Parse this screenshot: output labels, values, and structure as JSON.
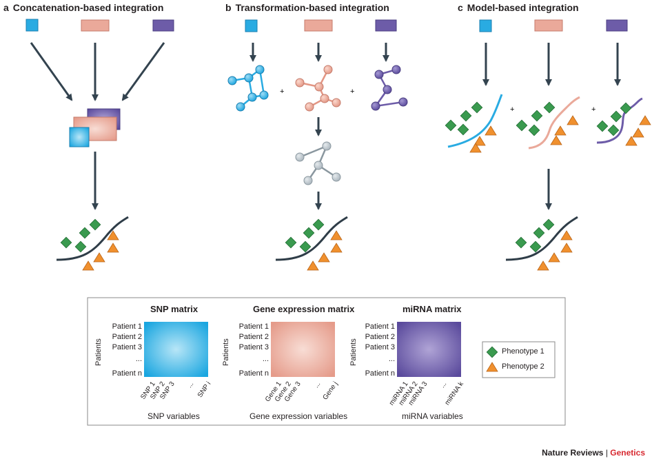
{
  "panels": [
    {
      "letter": "a",
      "title": "Concatenation-based integration"
    },
    {
      "letter": "b",
      "title": "Transformation-based integration"
    },
    {
      "letter": "c",
      "title": "Model-based integration"
    }
  ],
  "plus_sign": "+",
  "matrices": [
    {
      "title": "SNP matrix",
      "rows": [
        "Patient 1",
        "Patient 2",
        "Patient 3",
        "...",
        "Patient n"
      ],
      "cols": [
        "SNP 1",
        "SNP 2",
        "SNP 3",
        "...",
        "SNP i"
      ],
      "xlabel": "SNP variables",
      "ylabel": "Patients"
    },
    {
      "title": "Gene expression matrix",
      "rows": [
        "Patient 1",
        "Patient 2",
        "Patient 3",
        "...",
        "Patient n"
      ],
      "cols": [
        "Gene 1",
        "Gene 2",
        "Gene 3",
        "...",
        "Gene j"
      ],
      "xlabel": "Gene expression variables",
      "ylabel": "Patients"
    },
    {
      "title": "miRNA matrix",
      "rows": [
        "Patient 1",
        "Patient 2",
        "Patient 3",
        "...",
        "Patient n"
      ],
      "cols": [
        "miRNA 1",
        "miRNA 2",
        "miRNA 3",
        "...",
        "miRNA k"
      ],
      "xlabel": "miRNA variables",
      "ylabel": "Patients"
    }
  ],
  "legend": [
    {
      "label": "Phenotype 1",
      "shape": "diamond",
      "color": "#3a9a4f"
    },
    {
      "label": "Phenotype 2",
      "shape": "triangle",
      "color": "#f0902e"
    }
  ],
  "footer": {
    "journal": "Nature Reviews",
    "separator": "|",
    "section": "Genetics",
    "section_color": "#d7282f"
  },
  "colors": {
    "snp": "#29abe2",
    "gene": "#eaa99a",
    "mirna": "#6d5ca8",
    "merged": "#b3bdc4",
    "arrow": "#33434f"
  }
}
